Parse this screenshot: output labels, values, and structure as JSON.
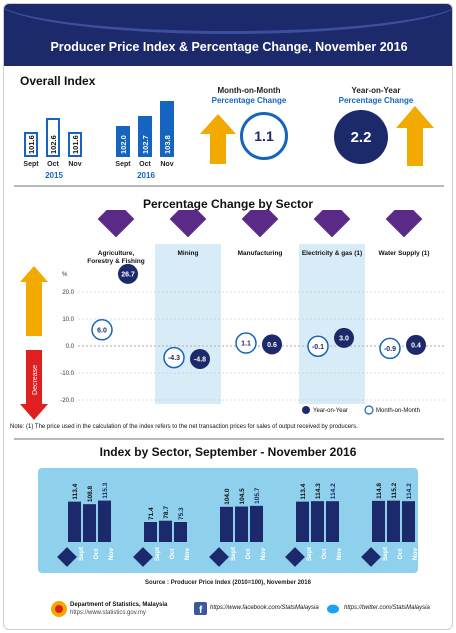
{
  "title": "Producer Price Index & Percentage Change, November 2016",
  "overall": {
    "heading": "Overall Index",
    "y2015": {
      "label": "2015",
      "bars": [
        {
          "m": "Sept",
          "v": "101.6"
        },
        {
          "m": "Oct",
          "v": "102.6"
        },
        {
          "m": "Nov",
          "v": "101.6"
        }
      ]
    },
    "y2016": {
      "label": "2016",
      "bars": [
        {
          "m": "Sept",
          "v": "102.0"
        },
        {
          "m": "Oct",
          "v": "102.7"
        },
        {
          "m": "Nov",
          "v": "103.8"
        }
      ]
    }
  },
  "mom": {
    "line1": "Month-on-Month",
    "line2": "Percentage Change",
    "value": "1.1"
  },
  "yoy": {
    "line1": "Year-on-Year",
    "line2": "Percentage Change",
    "value": "2.2"
  },
  "sector_section": {
    "heading": "Percentage Change by Sector",
    "increase": "Increase",
    "decrease": "Decrease",
    "unit": "%"
  },
  "legend": {
    "yoy": "Year-on-Year",
    "mom": "Month-on-Month"
  },
  "note": "Note: (1) The price used in the calculation of the index refers to the net transaction prices for sales of output received by producers.",
  "index_section": {
    "heading": "Index by Sector, September - November 2016",
    "months": [
      "Sept",
      "Oct",
      "Nov"
    ]
  },
  "source": "Source : Producer Price Index (2010=100), November 2016",
  "footer": {
    "dept": "Department of Statistics, Malaysia",
    "web": "https://www.statistics.gov.my",
    "fb": "https://www.facebook.com/StatsMalaysia",
    "tw": "https://twitter.com/StatsMalaysia"
  },
  "colors": {
    "navy": "#1c2a6b",
    "accent": "#1565c0",
    "gold": "#f2a900",
    "red": "#e02020",
    "purple": "#5b2a86"
  },
  "chart_data": [
    {
      "type": "bar",
      "title": "Percentage Change by Sector",
      "ylabel": "%",
      "ylim": [
        -25,
        25
      ],
      "yticks": [
        "20.0",
        "10.0",
        "0.0",
        "-10.0",
        "-20.0"
      ],
      "categories": [
        {
          "name": "Agriculture, Forestry & Fishing",
          "sup": ""
        },
        {
          "name": "Mining",
          "sup": ""
        },
        {
          "name": "Manufacturing",
          "sup": ""
        },
        {
          "name": "Electricity & gas",
          "sup": "(1)"
        },
        {
          "name": "Water Supply",
          "sup": "(1)"
        }
      ],
      "series": [
        {
          "name": "Month-on-Month",
          "values": [
            6.0,
            -4.3,
            1.1,
            -0.1,
            -0.9
          ],
          "labels": [
            "6.0",
            "-4.3",
            "1.1",
            "-0.1",
            "-0.9"
          ]
        },
        {
          "name": "Year-on-Year",
          "values": [
            26.7,
            -4.8,
            0.6,
            3.0,
            0.4
          ],
          "labels": [
            "26.7",
            "-4.8",
            "0.6",
            "3.0",
            "0.4"
          ]
        }
      ]
    },
    {
      "type": "bar",
      "title": "Index by Sector, September - November 2016",
      "categories": [
        "Sept",
        "Oct",
        "Nov"
      ],
      "series": [
        {
          "name": "Agriculture, Forestry & Fishing",
          "values": [
            113.4,
            108.8,
            115.3
          ],
          "labels": [
            "113.4",
            "108.8",
            "115.3"
          ]
        },
        {
          "name": "Mining",
          "values": [
            71.4,
            78.7,
            75.3
          ],
          "labels": [
            "71.4",
            "78.7",
            "75.3"
          ]
        },
        {
          "name": "Manufacturing",
          "values": [
            104.0,
            104.5,
            105.7
          ],
          "labels": [
            "104.0",
            "104.5",
            "105.7"
          ]
        },
        {
          "name": "Electricity & gas",
          "values": [
            113.4,
            114.3,
            114.2
          ],
          "labels": [
            "113.4",
            "114.3",
            "114.2"
          ]
        },
        {
          "name": "Water Supply",
          "values": [
            114.8,
            115.2,
            114.2
          ],
          "labels": [
            "114.8",
            "115.2",
            "114.2"
          ]
        }
      ]
    }
  ]
}
